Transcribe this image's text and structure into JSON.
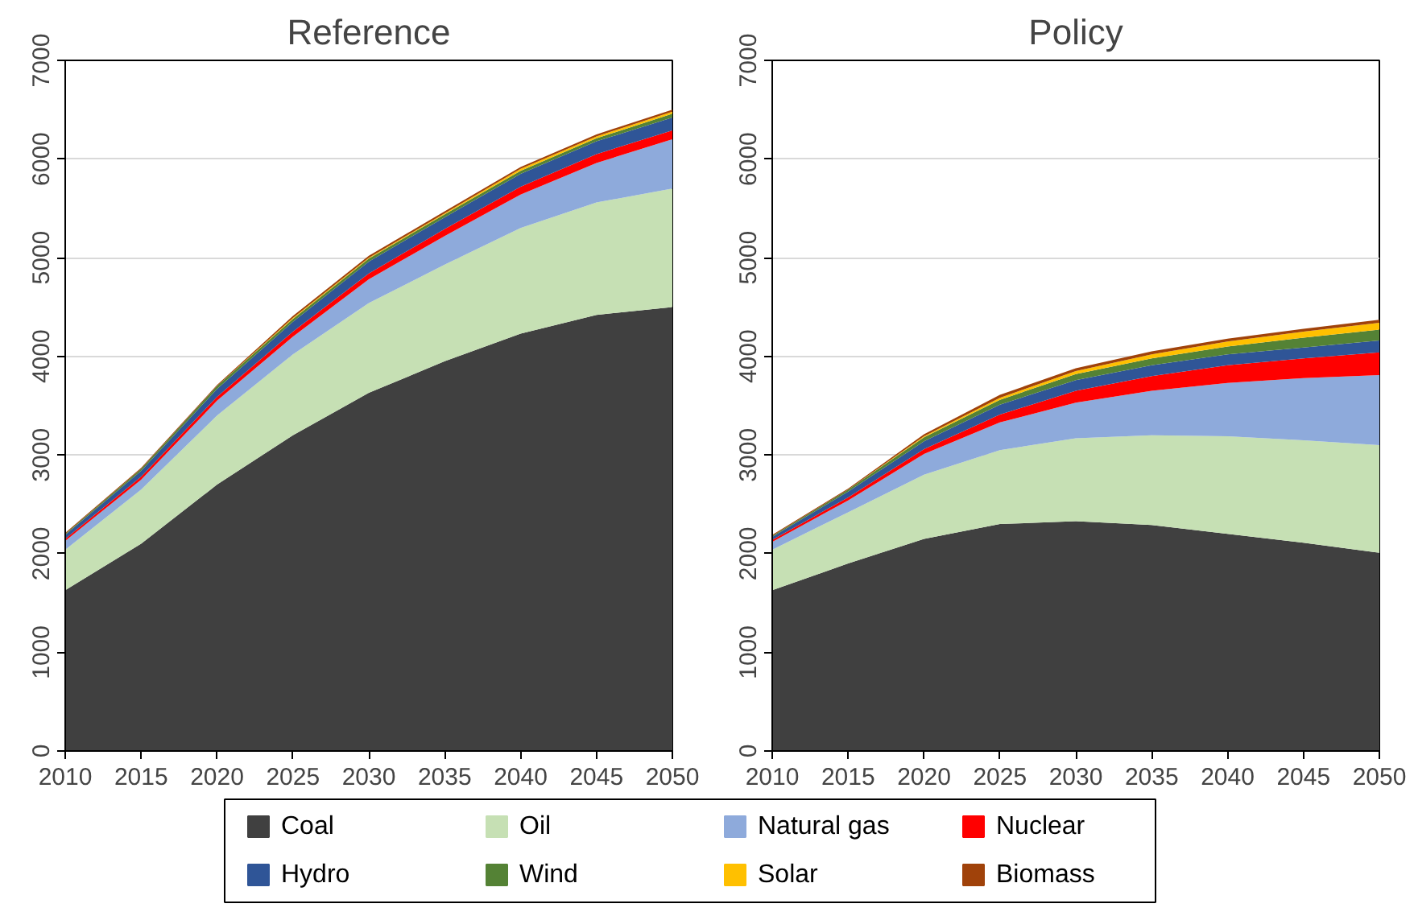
{
  "chart_data": [
    {
      "type": "area",
      "title": "Reference",
      "stacked": true,
      "x": [
        2010,
        2015,
        2020,
        2025,
        2030,
        2035,
        2040,
        2045,
        2050
      ],
      "xlim": [
        2010,
        2050
      ],
      "xticks": [
        2010,
        2015,
        2020,
        2025,
        2030,
        2035,
        2040,
        2045,
        2050
      ],
      "ylim": [
        0,
        7000
      ],
      "yticks": [
        0,
        1000,
        2000,
        3000,
        4000,
        5000,
        6000,
        7000
      ],
      "grid": "y",
      "legend": "bottom",
      "series": [
        {
          "name": "Coal",
          "color": "#404040",
          "values": [
            1630,
            2100,
            2700,
            3200,
            3630,
            3950,
            4230,
            4420,
            4500
          ]
        },
        {
          "name": "Oil",
          "color": "#c6e0b4",
          "values": [
            410,
            550,
            700,
            820,
            910,
            980,
            1070,
            1140,
            1200
          ]
        },
        {
          "name": "Natural gas",
          "color": "#8eaadb",
          "values": [
            90,
            100,
            150,
            180,
            240,
            290,
            340,
            400,
            500
          ]
        },
        {
          "name": "Nuclear",
          "color": "#ff0000",
          "values": [
            20,
            30,
            40,
            50,
            60,
            70,
            80,
            90,
            90
          ]
        },
        {
          "name": "Hydro",
          "color": "#2f5597",
          "values": [
            40,
            60,
            80,
            100,
            120,
            120,
            130,
            130,
            130
          ]
        },
        {
          "name": "Wind",
          "color": "#548235",
          "values": [
            10,
            20,
            30,
            30,
            30,
            30,
            30,
            30,
            40
          ]
        },
        {
          "name": "Solar",
          "color": "#ffc000",
          "values": [
            0,
            0,
            0,
            10,
            10,
            10,
            20,
            20,
            20
          ]
        },
        {
          "name": "Biomass",
          "color": "#a0420a",
          "values": [
            10,
            10,
            10,
            20,
            20,
            20,
            20,
            20,
            20
          ]
        }
      ]
    },
    {
      "type": "area",
      "title": "Policy",
      "stacked": true,
      "x": [
        2010,
        2015,
        2020,
        2025,
        2030,
        2035,
        2040,
        2045,
        2050
      ],
      "xlim": [
        2010,
        2050
      ],
      "xticks": [
        2010,
        2015,
        2020,
        2025,
        2030,
        2035,
        2040,
        2045,
        2050
      ],
      "ylim": [
        0,
        7000
      ],
      "yticks": [
        0,
        1000,
        2000,
        3000,
        4000,
        5000,
        6000,
        7000
      ],
      "grid": "y",
      "series": [
        {
          "color": "#404040",
          "values": [
            1630,
            1900,
            2150,
            2300,
            2330,
            2290,
            2200,
            2110,
            2010
          ]
        },
        {
          "color": "#c6e0b4",
          "values": [
            410,
            520,
            650,
            750,
            840,
            910,
            990,
            1040,
            1090
          ]
        },
        {
          "color": "#8eaadb",
          "values": [
            80,
            120,
            210,
            280,
            360,
            450,
            540,
            630,
            710
          ]
        },
        {
          "color": "#ff0000",
          "values": [
            20,
            30,
            50,
            80,
            120,
            150,
            180,
            200,
            230
          ]
        },
        {
          "color": "#2f5597",
          "values": [
            30,
            60,
            80,
            100,
            110,
            110,
            110,
            110,
            120
          ]
        },
        {
          "color": "#548235",
          "values": [
            10,
            20,
            40,
            50,
            60,
            70,
            80,
            100,
            110
          ]
        },
        {
          "color": "#ffc000",
          "values": [
            0,
            0,
            10,
            20,
            30,
            40,
            50,
            60,
            70
          ]
        },
        {
          "color": "#a0420a",
          "values": [
            10,
            10,
            20,
            30,
            30,
            30,
            30,
            30,
            30
          ]
        }
      ]
    }
  ]
}
